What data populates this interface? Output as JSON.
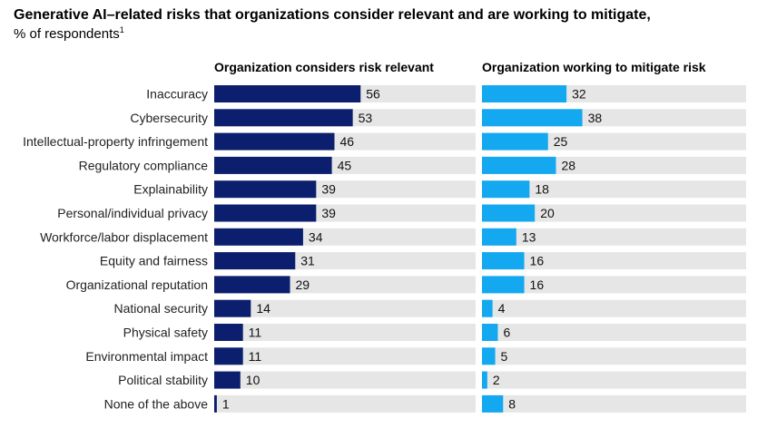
{
  "title": "Generative AI–related risks that organizations consider relevant and are working to mitigate,",
  "subtitle": "% of respondents",
  "footnote_marker": "1",
  "chart_data": [
    {
      "type": "bar",
      "orientation": "horizontal",
      "title": "Organization considers risk relevant",
      "categories": [
        "Inaccuracy",
        "Cybersecurity",
        "Intellectual-property infringement",
        "Regulatory compliance",
        "Explainability",
        "Personal/individual privacy",
        "Workforce/labor displacement",
        "Equity and fairness",
        "Organizational reputation",
        "National security",
        "Physical safety",
        "Environmental impact",
        "Political stability",
        "None of the above"
      ],
      "values": [
        56,
        53,
        46,
        45,
        39,
        39,
        34,
        31,
        29,
        14,
        11,
        11,
        10,
        1
      ],
      "xlim": [
        0,
        100
      ],
      "color": "#0c1f6e",
      "background_color": "#e6e6e6"
    },
    {
      "type": "bar",
      "orientation": "horizontal",
      "title": "Organization working to mitigate risk",
      "categories": [
        "Inaccuracy",
        "Cybersecurity",
        "Intellectual-property infringement",
        "Regulatory compliance",
        "Explainability",
        "Personal/individual privacy",
        "Workforce/labor displacement",
        "Equity and fairness",
        "Organizational reputation",
        "National security",
        "Physical safety",
        "Environmental impact",
        "Political stability",
        "None of the above"
      ],
      "values": [
        32,
        38,
        25,
        28,
        18,
        20,
        13,
        16,
        16,
        4,
        6,
        5,
        2,
        8
      ],
      "xlim": [
        0,
        100
      ],
      "color": "#13a8ef",
      "background_color": "#e6e6e6"
    }
  ]
}
